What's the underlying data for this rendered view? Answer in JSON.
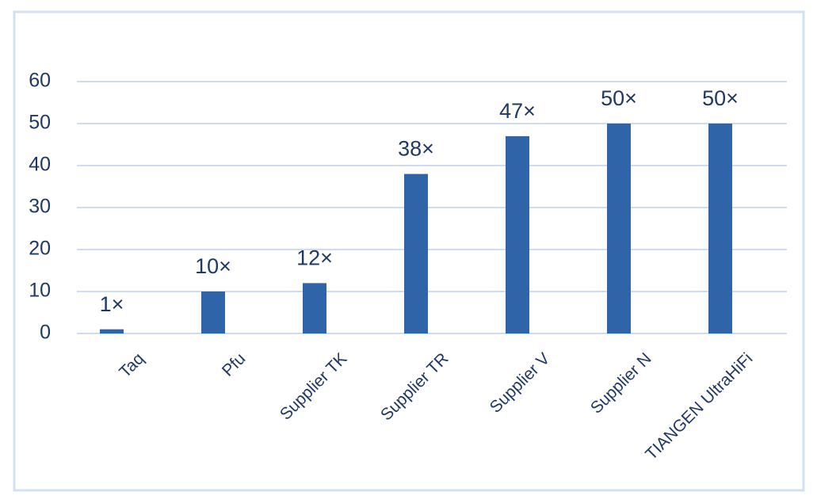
{
  "chart_data": {
    "type": "bar",
    "categories": [
      "Taq",
      "Pfu",
      "Supplier TK",
      "Supplier TR",
      "Supplier V",
      "Supplier N",
      "TIANGEN UltraHiFi"
    ],
    "values": [
      1,
      10,
      12,
      38,
      47,
      50,
      50
    ],
    "value_labels": [
      "1×",
      "10×",
      "12×",
      "38×",
      "47×",
      "50×",
      "50×"
    ],
    "color": "#2f65a8",
    "ylim": [
      0,
      60
    ],
    "yticks": [
      0,
      10,
      20,
      30,
      40,
      50,
      60
    ],
    "grid": true
  }
}
